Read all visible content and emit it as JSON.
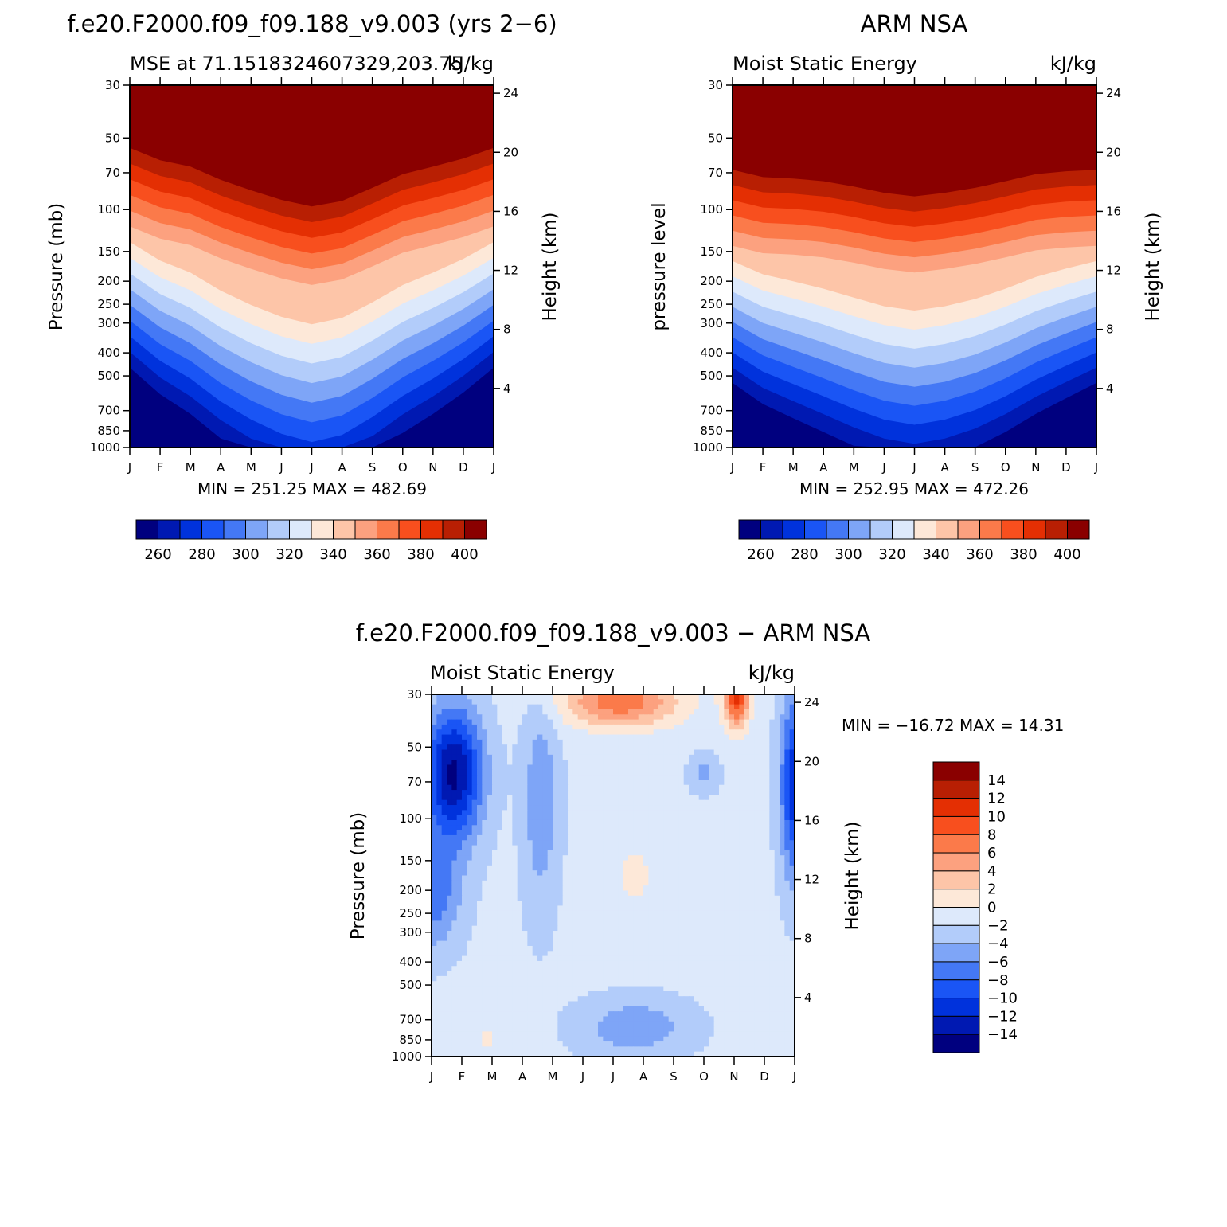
{
  "palette": [
    "#00007f",
    "#0019b2",
    "#0032dc",
    "#1a55f5",
    "#4478f5",
    "#7ea5f7",
    "#b2ccfa",
    "#dde9fb",
    "#fde8d8",
    "#fdc5a8",
    "#fca17f",
    "#fb7a4a",
    "#f84f1e",
    "#e42f03",
    "#b81f03",
    "#8a0000"
  ],
  "months": [
    "J",
    "F",
    "M",
    "A",
    "M",
    "J",
    "J",
    "A",
    "S",
    "O",
    "N",
    "D",
    "J"
  ],
  "panels": [
    {
      "title": "f.e20.F2000.f09_f09.188_v9.003 (yrs 2−6)",
      "left_label": "MSE at 71.1518324607329,203.75",
      "right_label": "kJ/kg",
      "ylabel": "Pressure (mb)",
      "ylabel2": "Height (km)",
      "stats": "MIN = 251.25 MAX = 482.69",
      "pressure_ticks": [
        "30",
        "50",
        "70",
        "100",
        "150",
        "200",
        "250",
        "300",
        "400",
        "500",
        "700",
        "850",
        "1000"
      ],
      "height_ticks": [
        "24",
        "20",
        "16",
        "12",
        "8",
        "4"
      ],
      "colorbar_labels": [
        "260",
        "280",
        "300",
        "320",
        "340",
        "360",
        "380",
        "400"
      ]
    },
    {
      "title": "ARM NSA",
      "left_label": "Moist Static Energy",
      "right_label": "kJ/kg",
      "ylabel": "pressure level",
      "ylabel2": "Height (km)",
      "stats": "MIN = 252.95 MAX = 472.26",
      "pressure_ticks": [
        "30",
        "50",
        "70",
        "100",
        "150",
        "200",
        "250",
        "300",
        "400",
        "500",
        "700",
        "850",
        "1000"
      ],
      "height_ticks": [
        "24",
        "20",
        "16",
        "12",
        "8",
        "4"
      ],
      "colorbar_labels": [
        "260",
        "280",
        "300",
        "320",
        "340",
        "360",
        "380",
        "400"
      ]
    },
    {
      "title": "f.e20.F2000.f09_f09.188_v9.003 − ARM NSA",
      "left_label": "Moist Static Energy",
      "right_label": "kJ/kg",
      "ylabel": "Pressure (mb)",
      "ylabel2": "Height (km)",
      "stats": "MIN = −16.72 MAX =  14.31",
      "pressure_ticks": [
        "30",
        "50",
        "70",
        "100",
        "150",
        "200",
        "250",
        "300",
        "400",
        "500",
        "700",
        "850",
        "1000"
      ],
      "height_ticks": [
        "24",
        "20",
        "16",
        "12",
        "8",
        "4"
      ],
      "colorbar_labels": [
        "14",
        "12",
        "10",
        "8",
        "6",
        "4",
        "2",
        "0",
        "−2",
        "−4",
        "−6",
        "−8",
        "−10",
        "−12",
        "−14"
      ]
    }
  ],
  "chart_data": [
    {
      "type": "heatmap",
      "title": "f.e20.F2000.f09_f09.188_v9.003 (yrs 2−6)",
      "x": [
        "J",
        "F",
        "M",
        "A",
        "M",
        "J",
        "J",
        "A",
        "S",
        "O",
        "N",
        "D",
        "J"
      ],
      "y_pressure_mb": [
        30,
        1000
      ],
      "y_scale": "log",
      "levels": [
        255,
        260,
        265,
        270,
        275,
        280,
        285,
        290,
        295,
        300,
        305,
        310,
        315,
        320,
        325,
        330,
        335,
        340,
        345,
        350,
        355,
        360,
        365,
        370,
        375,
        380,
        385,
        390,
        395,
        400,
        405
      ],
      "top_boundary_mb": [
        55,
        62,
        66,
        75,
        83,
        91,
        97,
        92,
        81,
        71,
        66,
        61,
        55
      ],
      "layer_spacing_log10": 0.066,
      "min": 251.25,
      "max": 482.69,
      "units": "kJ/kg"
    },
    {
      "type": "heatmap",
      "title": "ARM NSA",
      "x": [
        "J",
        "F",
        "M",
        "A",
        "M",
        "J",
        "J",
        "A",
        "S",
        "O",
        "N",
        "D",
        "J"
      ],
      "y_pressure_mb": [
        30,
        1000
      ],
      "y_scale": "log",
      "levels": [
        255,
        260,
        265,
        270,
        275,
        280,
        285,
        290,
        295,
        300,
        305,
        310,
        315,
        320,
        325,
        330,
        335,
        340,
        345,
        350,
        355,
        360,
        365,
        370,
        375,
        380,
        385,
        390,
        395,
        400,
        405
      ],
      "top_boundary_mb": [
        68,
        73,
        74,
        76,
        80,
        85,
        88,
        85,
        81,
        76,
        71,
        69,
        68
      ],
      "layer_spacing_log10": 0.064,
      "min": 252.95,
      "max": 472.26,
      "units": "kJ/kg"
    },
    {
      "type": "heatmap",
      "title": "f.e20.F2000.f09_f09.188_v9.003 − ARM NSA",
      "x": [
        "J",
        "F",
        "M",
        "A",
        "M",
        "J",
        "J",
        "A",
        "S",
        "O",
        "N",
        "D",
        "J"
      ],
      "y_pressure_mb": [
        30,
        1000
      ],
      "y_scale": "log",
      "levels": [
        -14,
        -12,
        -10,
        -8,
        -6,
        -4,
        -2,
        0,
        2,
        4,
        6,
        8,
        10,
        12,
        14
      ],
      "min": -16.72,
      "max": 14.31,
      "units": "kJ/kg"
    }
  ]
}
